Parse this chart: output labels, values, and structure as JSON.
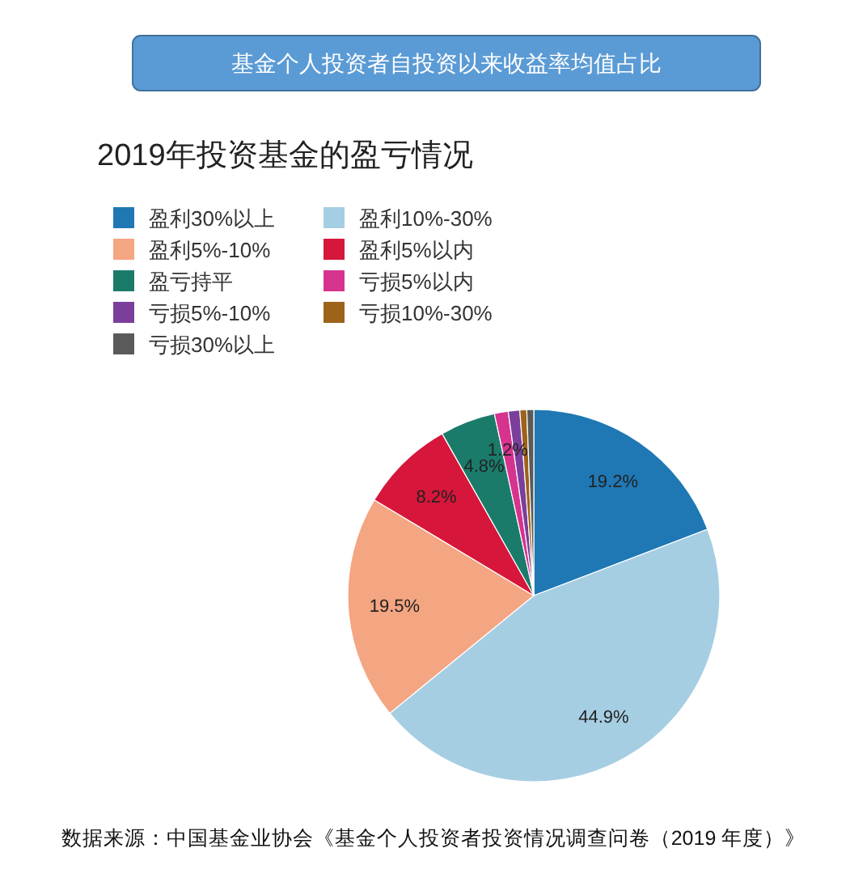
{
  "chart_data": {
    "type": "pie",
    "title": "基金个人投资者自投资以来收益率均值占比",
    "subtitle": "2019年投资基金的盈亏情况",
    "categories": [
      "盈利30%以上",
      "盈利10%-30%",
      "盈利5%-10%",
      "盈利5%以内",
      "盈亏持平",
      "亏损5%以内",
      "亏损5%-10%",
      "亏损10%-30%",
      "亏损30%以上"
    ],
    "values": [
      19.2,
      44.9,
      19.5,
      8.2,
      4.8,
      1.2,
      1.0,
      0.6,
      0.6
    ],
    "value_labels": [
      "19.2%",
      "44.9%",
      "19.5%",
      "8.2%",
      "4.8%",
      "1.2%",
      null,
      null,
      null
    ],
    "colors": [
      "#1f78b4",
      "#a6cee3",
      "#f4a582",
      "#d6163a",
      "#1b7b6b",
      "#d6338f",
      "#7b3f9b",
      "#9c6319",
      "#5a5a5a"
    ],
    "legend": "top left",
    "annotations": [
      "数据来源：中国基金业协会《基金个人投资者投资情况调查问卷（2019 年度）》"
    ]
  }
}
